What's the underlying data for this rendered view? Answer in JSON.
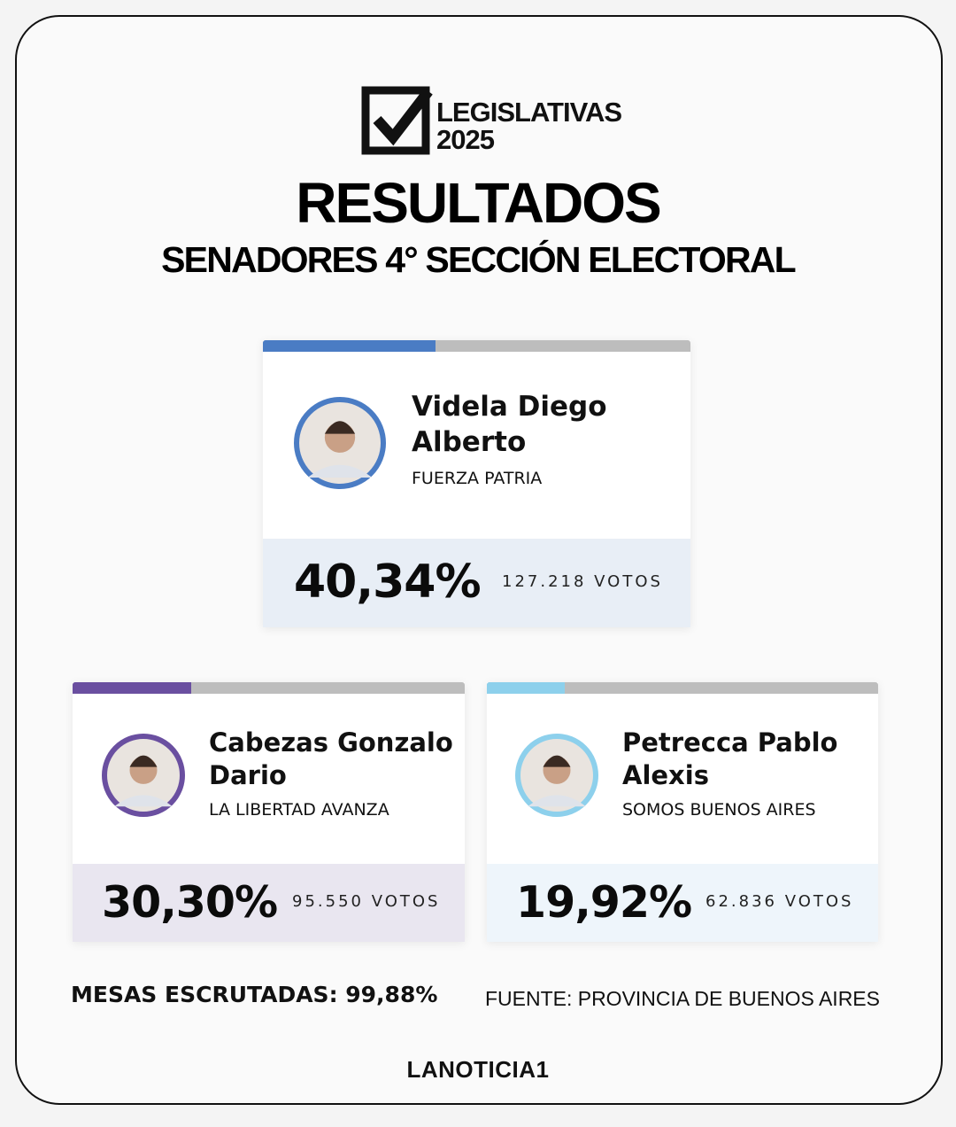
{
  "header": {
    "logo_line1": "LEGISLATIVAS",
    "logo_line2": "2025",
    "title": "RESULTADOS",
    "subtitle": "SENADORES 4° SECCIÓN ELECTORAL"
  },
  "candidates": [
    {
      "name": "Videla Diego Alberto",
      "party": "FUERZA PATRIA",
      "share": {
        "value": 40.34,
        "label": "40,34%"
      },
      "votes": "127.218 VOTOS",
      "color": "#4a7cc4",
      "panel": "#e8eef6"
    },
    {
      "name": "Cabezas Gonzalo Dario",
      "party": "LA LIBERTAD AVANZA",
      "share": {
        "value": 30.3,
        "label": "30,30%"
      },
      "votes": "95.550 VOTOS",
      "color": "#6a4fa0",
      "panel": "#e9e6f0"
    },
    {
      "name": "Petrecca Pablo Alexis",
      "party": "SOMOS BUENOS AIRES",
      "share": {
        "value": 19.92,
        "label": "19,92%"
      },
      "votes": "62.836 VOTOS",
      "color": "#8dd0ec",
      "panel": "#eef5fb"
    }
  ],
  "footer": {
    "tables": "MESAS ESCRUTADAS: 99,88%",
    "source": "FUENTE: PROVINCIA DE BUENOS AIRES",
    "brand": "LANOTICIA1"
  }
}
